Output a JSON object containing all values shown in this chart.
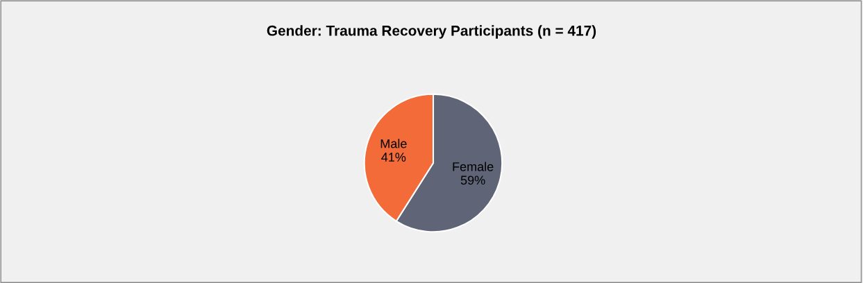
{
  "chart_data": {
    "type": "pie",
    "title": "Gender: Trauma Recovery Participants (n = 417)",
    "categories": [
      "Female",
      "Male"
    ],
    "values": [
      59,
      41
    ],
    "value_labels": [
      "59%",
      "41%"
    ],
    "colors": [
      "#5f6577",
      "#f26b38"
    ]
  }
}
